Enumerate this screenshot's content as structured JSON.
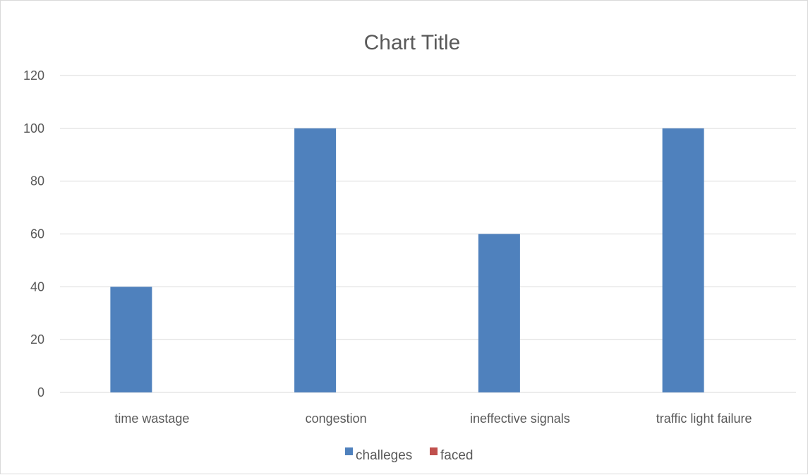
{
  "chart_data": {
    "type": "bar",
    "title": "Chart Title",
    "categories": [
      "time wastage",
      "congestion",
      "ineffective signals",
      "traffic light failure"
    ],
    "series": [
      {
        "name": "challeges",
        "color": "#4f81bd",
        "values": [
          40,
          100,
          60,
          100
        ]
      },
      {
        "name": "faced",
        "color": "#c0504d",
        "values": [
          0,
          0,
          0,
          0
        ]
      }
    ],
    "ylim": [
      0,
      120
    ],
    "yticks": [
      0,
      20,
      40,
      60,
      80,
      100,
      120
    ],
    "grid": true,
    "legend_position": "bottom",
    "xlabel": "",
    "ylabel": ""
  },
  "colors": {
    "gridline": "#d9d9d9",
    "text": "#595959",
    "border": "#d9d9d9"
  }
}
